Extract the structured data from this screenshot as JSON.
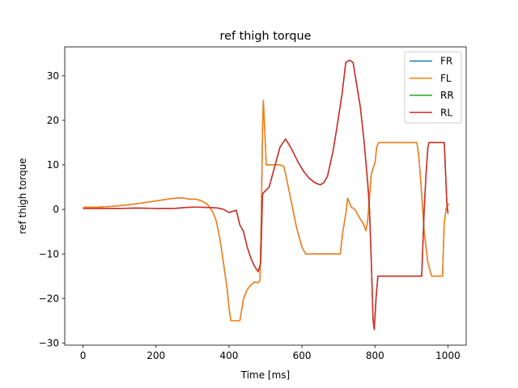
{
  "chart_data": {
    "type": "line",
    "title": "ref thigh torque",
    "xlabel": "Time [ms]",
    "ylabel": "ref thigh torque",
    "xlim": [
      -50,
      1050
    ],
    "ylim": [
      -30.5,
      36.5
    ],
    "xticks": [
      0,
      200,
      400,
      600,
      800,
      1000
    ],
    "yticks": [
      -30,
      -20,
      -10,
      0,
      10,
      20,
      30
    ],
    "xtick_labels": [
      "0",
      "200",
      "400",
      "600",
      "800",
      "1000"
    ],
    "ytick_labels": [
      "−30",
      "−20",
      "−10",
      "0",
      "10",
      "20",
      "30"
    ],
    "grid": false,
    "legend_position": "top-right",
    "series": [
      {
        "name": "FR",
        "color": "#1f77b4",
        "points": [
          [
            0,
            0.5
          ],
          [
            40,
            0.5
          ],
          [
            80,
            0.7
          ],
          [
            120,
            1.0
          ],
          [
            160,
            1.4
          ],
          [
            200,
            1.9
          ],
          [
            240,
            2.4
          ],
          [
            265,
            2.6
          ],
          [
            280,
            2.5
          ],
          [
            290,
            2.3
          ],
          [
            310,
            2.3
          ],
          [
            325,
            1.9
          ],
          [
            340,
            1.2
          ],
          [
            355,
            -0.5
          ],
          [
            365,
            -2.5
          ],
          [
            375,
            -6.5
          ],
          [
            385,
            -12
          ],
          [
            395,
            -18
          ],
          [
            400,
            -22
          ],
          [
            405,
            -25
          ],
          [
            430,
            -25
          ],
          [
            440,
            -20
          ],
          [
            450,
            -18
          ],
          [
            460,
            -17
          ],
          [
            470,
            -16.3
          ],
          [
            480,
            -16.5
          ],
          [
            485,
            -16
          ],
          [
            488,
            -4
          ],
          [
            492,
            18
          ],
          [
            494,
            24.5
          ],
          [
            498,
            18
          ],
          [
            502,
            10
          ],
          [
            540,
            10
          ],
          [
            550,
            9.7
          ],
          [
            555,
            8
          ],
          [
            570,
            2
          ],
          [
            585,
            -4
          ],
          [
            600,
            -8.5
          ],
          [
            610,
            -10
          ],
          [
            705,
            -10
          ],
          [
            712,
            -5
          ],
          [
            720,
            -1
          ],
          [
            725,
            2.5
          ],
          [
            735,
            0.5
          ],
          [
            745,
            0
          ],
          [
            755,
            -1.5
          ],
          [
            770,
            -3.5
          ],
          [
            775,
            -4.8
          ],
          [
            780,
            -2.5
          ],
          [
            790,
            8
          ],
          [
            800,
            10.5
          ],
          [
            805,
            14
          ],
          [
            810,
            15
          ],
          [
            915,
            15
          ],
          [
            920,
            12
          ],
          [
            925,
            7
          ],
          [
            935,
            -5
          ],
          [
            945,
            -12
          ],
          [
            955,
            -15
          ],
          [
            985,
            -15
          ],
          [
            990,
            -3
          ],
          [
            995,
            0.2
          ],
          [
            1000,
            1.2
          ],
          [
            1003,
            1
          ]
        ]
      },
      {
        "name": "FL",
        "color": "#ff7f0e",
        "points": [
          [
            0,
            0.5
          ],
          [
            40,
            0.5
          ],
          [
            80,
            0.7
          ],
          [
            120,
            1.0
          ],
          [
            160,
            1.4
          ],
          [
            200,
            1.9
          ],
          [
            240,
            2.4
          ],
          [
            265,
            2.6
          ],
          [
            280,
            2.5
          ],
          [
            290,
            2.3
          ],
          [
            310,
            2.3
          ],
          [
            325,
            1.9
          ],
          [
            340,
            1.2
          ],
          [
            355,
            -0.5
          ],
          [
            365,
            -2.5
          ],
          [
            375,
            -6.5
          ],
          [
            385,
            -12
          ],
          [
            395,
            -18
          ],
          [
            400,
            -22
          ],
          [
            405,
            -25
          ],
          [
            430,
            -25
          ],
          [
            440,
            -20
          ],
          [
            450,
            -18
          ],
          [
            460,
            -17
          ],
          [
            470,
            -16.3
          ],
          [
            480,
            -16.5
          ],
          [
            485,
            -16
          ],
          [
            488,
            -4
          ],
          [
            492,
            18
          ],
          [
            494,
            24.5
          ],
          [
            498,
            18
          ],
          [
            502,
            10
          ],
          [
            540,
            10
          ],
          [
            550,
            9.7
          ],
          [
            555,
            8
          ],
          [
            570,
            2
          ],
          [
            585,
            -4
          ],
          [
            600,
            -8.5
          ],
          [
            610,
            -10
          ],
          [
            705,
            -10
          ],
          [
            712,
            -5
          ],
          [
            720,
            -1
          ],
          [
            725,
            2.5
          ],
          [
            735,
            0.5
          ],
          [
            745,
            0
          ],
          [
            755,
            -1.5
          ],
          [
            770,
            -3.5
          ],
          [
            775,
            -4.8
          ],
          [
            780,
            -2.5
          ],
          [
            790,
            8
          ],
          [
            800,
            10.5
          ],
          [
            805,
            14
          ],
          [
            810,
            15
          ],
          [
            915,
            15
          ],
          [
            920,
            12
          ],
          [
            925,
            7
          ],
          [
            935,
            -5
          ],
          [
            945,
            -12
          ],
          [
            955,
            -15
          ],
          [
            985,
            -15
          ],
          [
            990,
            -3
          ],
          [
            995,
            0.2
          ],
          [
            1000,
            1.2
          ],
          [
            1003,
            1
          ]
        ]
      },
      {
        "name": "RR",
        "color": "#2ca02c",
        "points": [
          [
            0,
            0.2
          ],
          [
            100,
            0.2
          ],
          [
            150,
            0.3
          ],
          [
            200,
            0.2
          ],
          [
            250,
            0.2
          ],
          [
            280,
            0.4
          ],
          [
            300,
            0.5
          ],
          [
            320,
            0.5
          ],
          [
            350,
            0.4
          ],
          [
            370,
            0.3
          ],
          [
            385,
            0
          ],
          [
            400,
            -0.7
          ],
          [
            420,
            -0.2
          ],
          [
            430,
            -3.5
          ],
          [
            440,
            -5
          ],
          [
            450,
            -8.5
          ],
          [
            460,
            -11
          ],
          [
            470,
            -12.8
          ],
          [
            480,
            -14
          ],
          [
            487,
            -12
          ],
          [
            492,
            3.5
          ],
          [
            500,
            4.2
          ],
          [
            510,
            5
          ],
          [
            520,
            8
          ],
          [
            530,
            11
          ],
          [
            540,
            14
          ],
          [
            555,
            15.8
          ],
          [
            565,
            14.5
          ],
          [
            575,
            13
          ],
          [
            590,
            10.5
          ],
          [
            605,
            8.5
          ],
          [
            620,
            7
          ],
          [
            635,
            6
          ],
          [
            650,
            5.5
          ],
          [
            660,
            6
          ],
          [
            670,
            7.5
          ],
          [
            685,
            13
          ],
          [
            695,
            18
          ],
          [
            710,
            26
          ],
          [
            720,
            33
          ],
          [
            730,
            33.5
          ],
          [
            740,
            33
          ],
          [
            750,
            28
          ],
          [
            760,
            23
          ],
          [
            770,
            15.5
          ],
          [
            780,
            6
          ],
          [
            785,
            0
          ],
          [
            790,
            -12
          ],
          [
            795,
            -25
          ],
          [
            798,
            -27
          ],
          [
            803,
            -20
          ],
          [
            808,
            -15
          ],
          [
            820,
            -15
          ],
          [
            928,
            -15
          ],
          [
            935,
            0
          ],
          [
            940,
            8
          ],
          [
            945,
            14
          ],
          [
            948,
            15
          ],
          [
            990,
            15
          ],
          [
            997,
            1.5
          ],
          [
            1000,
            -1
          ]
        ]
      },
      {
        "name": "RL",
        "color": "#d62728",
        "points": [
          [
            0,
            0.2
          ],
          [
            100,
            0.2
          ],
          [
            150,
            0.3
          ],
          [
            200,
            0.2
          ],
          [
            250,
            0.2
          ],
          [
            280,
            0.4
          ],
          [
            300,
            0.5
          ],
          [
            320,
            0.5
          ],
          [
            350,
            0.4
          ],
          [
            370,
            0.3
          ],
          [
            385,
            0
          ],
          [
            400,
            -0.7
          ],
          [
            420,
            -0.2
          ],
          [
            430,
            -3.5
          ],
          [
            440,
            -5
          ],
          [
            450,
            -8.5
          ],
          [
            460,
            -11
          ],
          [
            470,
            -12.8
          ],
          [
            480,
            -14
          ],
          [
            487,
            -12
          ],
          [
            492,
            3.5
          ],
          [
            500,
            4.2
          ],
          [
            510,
            5
          ],
          [
            520,
            8
          ],
          [
            530,
            11
          ],
          [
            540,
            14
          ],
          [
            555,
            15.8
          ],
          [
            565,
            14.5
          ],
          [
            575,
            13
          ],
          [
            590,
            10.5
          ],
          [
            605,
            8.5
          ],
          [
            620,
            7
          ],
          [
            635,
            6
          ],
          [
            650,
            5.5
          ],
          [
            660,
            6
          ],
          [
            670,
            7.5
          ],
          [
            685,
            13
          ],
          [
            695,
            18
          ],
          [
            710,
            26
          ],
          [
            720,
            33
          ],
          [
            730,
            33.5
          ],
          [
            740,
            33
          ],
          [
            750,
            28
          ],
          [
            760,
            23
          ],
          [
            770,
            15.5
          ],
          [
            780,
            6
          ],
          [
            785,
            0
          ],
          [
            790,
            -12
          ],
          [
            795,
            -25
          ],
          [
            798,
            -27
          ],
          [
            803,
            -20
          ],
          [
            808,
            -15
          ],
          [
            820,
            -15
          ],
          [
            928,
            -15
          ],
          [
            935,
            0
          ],
          [
            940,
            8
          ],
          [
            945,
            14
          ],
          [
            948,
            15
          ],
          [
            990,
            15
          ],
          [
            997,
            1.5
          ],
          [
            1000,
            -1
          ]
        ]
      }
    ]
  }
}
